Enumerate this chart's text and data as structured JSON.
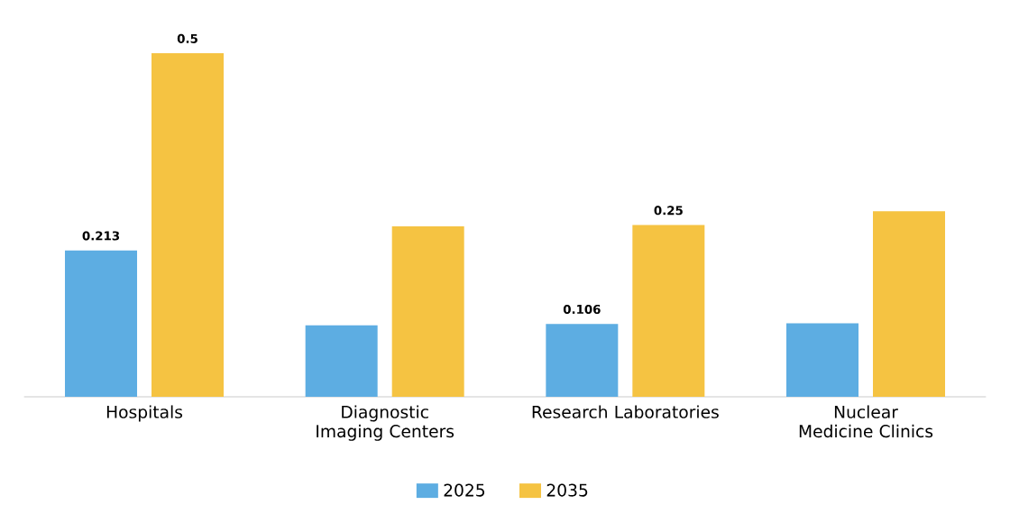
{
  "chart_data": {
    "type": "bar",
    "categories": [
      "Hospitals",
      "Diagnostic Imaging Centers",
      "Research Laboratories",
      "Nuclear Medicine Clinics"
    ],
    "series": [
      {
        "name": "2025",
        "color": "#5dade2",
        "values": [
          0.213,
          0.104,
          0.106,
          0.107
        ],
        "value_labels": [
          "0.213",
          null,
          "0.106",
          null
        ]
      },
      {
        "name": "2035",
        "color": "#f5c342",
        "values": [
          0.5,
          0.248,
          0.25,
          0.27
        ],
        "value_labels": [
          "0.5",
          null,
          "0.25",
          null
        ]
      }
    ],
    "legend": "bottom"
  }
}
